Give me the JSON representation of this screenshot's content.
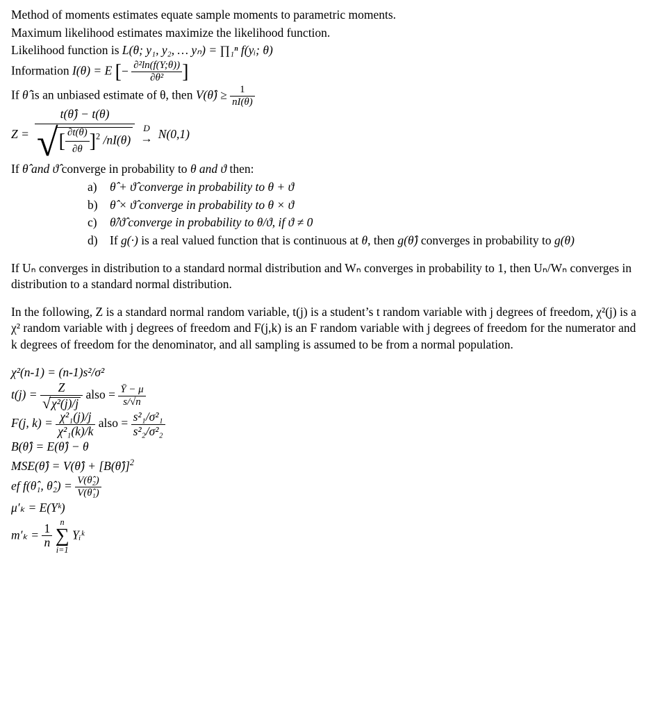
{
  "p1": "Method of moments estimates equate sample moments to parametric moments.",
  "p2": "Maximum likelihood estimates maximize the likelihood function.",
  "p3_a": "Likelihood function is ",
  "p3_b": "L(θ; y₁, y₂, …  yₙ) = ∏₁ⁿ f(yᵢ; θ)",
  "p4_a": "Information ",
  "p4_b": "I(θ) =  E",
  "info_num": "∂²ln(f(Y;θ))",
  "info_den": "∂θ²",
  "p5_a": "If ",
  "p5_b": "θ̂",
  "p5_c": " is an unbiased estimate of θ, then ",
  "p5_d": "V(θ̂) ≥",
  "crlb_num": "1",
  "crlb_den": "nI(θ)",
  "z_lhs": "Z  =",
  "z_num": "t(θ̂) − t(θ)",
  "z_den_inner_num": "∂t(θ)",
  "z_den_inner_den": "∂θ",
  "z_den_sq": "2",
  "z_den_tail": "/nI(θ)",
  "z_arrow_top": "D",
  "z_arrow": "→",
  "z_rhs": "N(0,1)",
  "conv_a": "If ",
  "conv_b": "θ̂ and ϑ̂",
  "conv_c": " converge in probability to ",
  "conv_d": "θ and ϑ",
  "conv_e": " then:",
  "la": "a)",
  "lb": "b)",
  "lc": "c)",
  "ld": "d)",
  "li_a": "θ̂ + ϑ̂ converge in probability to θ + ϑ",
  "li_b": "θ̂  ×  ϑ̂ converge in probability to θ × ϑ",
  "li_c": "θ̂/ϑ̂ converge in probability to θ/ϑ, if ϑ ≠ 0",
  "li_d_a": "If ",
  "li_d_b": "g(·)",
  "li_d_c": " is a real valued function that is continuous at ",
  "li_d_d": "θ",
  "li_d_e": ", then ",
  "li_d_f": "g(θ̂)",
  "li_d_g": " converges in probability to ",
  "li_d_h": "g(θ)",
  "para_uw": "If Uₙ converges in distribution to a standard normal distribution and Wₙ converges in probability to 1, then Uₙ/Wₙ converges in distribution to a standard normal distribution.",
  "para_defs": "In the following, Z is a standard normal random variable, t(j) is a student’s t random variable with j degrees of freedom, χ²(j) is a χ² random variable with j degrees of freedom and F(j,k) is an F random variable with j degrees of freedom for the numerator and k degrees of freedom for the denominator, and all sampling is assumed to be from a normal population.",
  "chi_eq": "χ²(n-1)  =  (n-1)s²/σ²",
  "t_l": "t(j)  =",
  "t_num": "Z",
  "t_den_inner": "χ²(j)/j",
  "also": " also ",
  "eq": "= ",
  "t2_num": "Ȳ − μ",
  "t2_den": "s/√n",
  "F_l": "F(j, k)  =",
  "F_num": "χ²₁(j)/j",
  "F_den": "χ²₁(k)/k",
  "F2_num": "s²₁/σ²₁",
  "F2_den": "s²₂/σ²₂",
  "bias": "B(θ̂)  =   E(θ̂) −  θ",
  "mse_a": "MSE(θ̂)  =   V(θ̂) +  [B(θ̂)]",
  "mse_b": "2",
  "eff_l": "ef f(θ̂₁, θ̂₂)  =",
  "eff_num": "V(θ̂₂)",
  "eff_den": "V(θ̂₁)",
  "muk": "μ′ₖ  =  E(Yᵏ)",
  "mk_l": "m′ₖ  =",
  "mk_num": "1",
  "mk_den": "n",
  "mk_sum_top": "n",
  "mk_sum_bot": "i=1",
  "mk_term": "Yᵢᵏ"
}
